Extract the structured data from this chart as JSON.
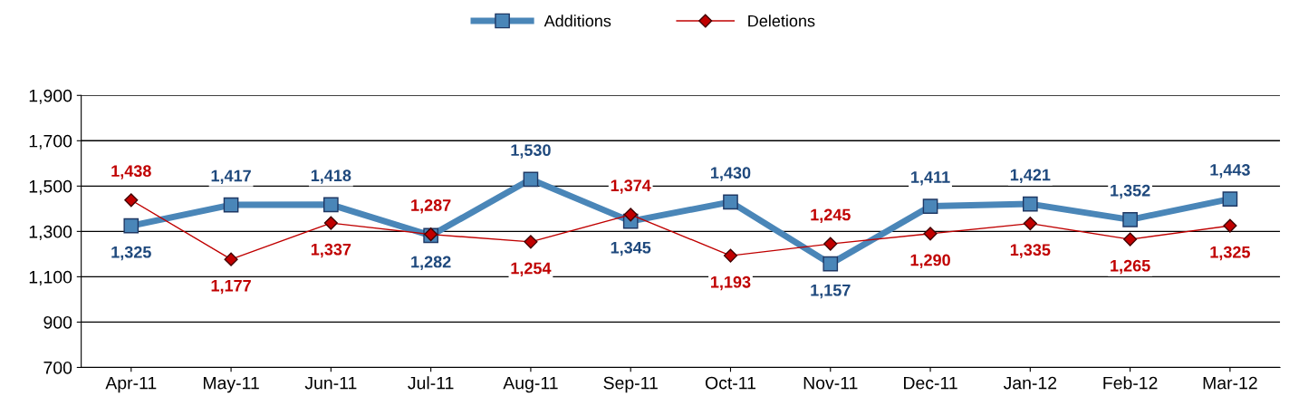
{
  "chart_data": {
    "type": "line",
    "categories": [
      "Apr-11",
      "May-11",
      "Jun-11",
      "Jul-11",
      "Aug-11",
      "Sep-11",
      "Oct-11",
      "Nov-11",
      "Dec-11",
      "Jan-12",
      "Feb-12",
      "Mar-12"
    ],
    "series": [
      {
        "name": "Additions",
        "color": "#4a86b8",
        "marker": "square",
        "values": [
          1325,
          1417,
          1418,
          1282,
          1530,
          1345,
          1430,
          1157,
          1411,
          1421,
          1352,
          1443
        ],
        "value_labels": [
          "1,325",
          "1,417",
          "1,418",
          "1,282",
          "1,530",
          "1,345",
          "1,430",
          "1,157",
          "1,411",
          "1,421",
          "1,352",
          "1,443"
        ]
      },
      {
        "name": "Deletions",
        "color": "#c00000",
        "marker": "diamond",
        "values": [
          1438,
          1177,
          1337,
          1287,
          1254,
          1374,
          1193,
          1245,
          1290,
          1335,
          1265,
          1325
        ],
        "value_labels": [
          "1,438",
          "1,177",
          "1,337",
          "1,287",
          "1,254",
          "1,374",
          "1,193",
          "1,245",
          "1,290",
          "1,335",
          "1,265",
          "1,325"
        ]
      }
    ],
    "ylim": [
      700,
      1900
    ],
    "yticks": [
      700,
      900,
      {
        "value": 1100,
        "label": "1,100"
      },
      {
        "value": 1300,
        "label": "1,300"
      },
      {
        "value": 1500,
        "label": "1,500"
      },
      {
        "value": 1700,
        "label": "1,700"
      },
      {
        "value": 1900,
        "label": "1,900"
      }
    ],
    "grid": "y",
    "legend": "top",
    "line_style": "solid"
  }
}
